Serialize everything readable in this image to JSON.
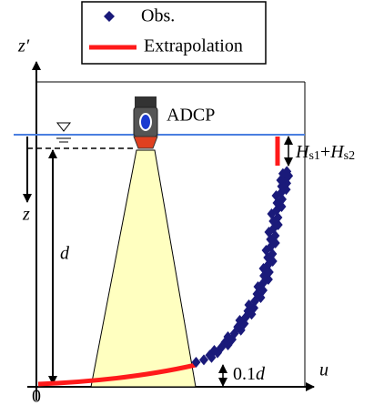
{
  "legend": {
    "obs": "Obs.",
    "extrapolation": "Extrapolation"
  },
  "labels": {
    "z_prime": "z′",
    "adcp": "ADCP",
    "hs1": "H",
    "hs1_sub": "s1",
    "plus": "+",
    "hs2": "H",
    "hs2_sub": "s2",
    "z": "z",
    "d": "d",
    "tenth": "0.1",
    "tenth_d": "d",
    "u": "u",
    "origin": "0"
  }
}
